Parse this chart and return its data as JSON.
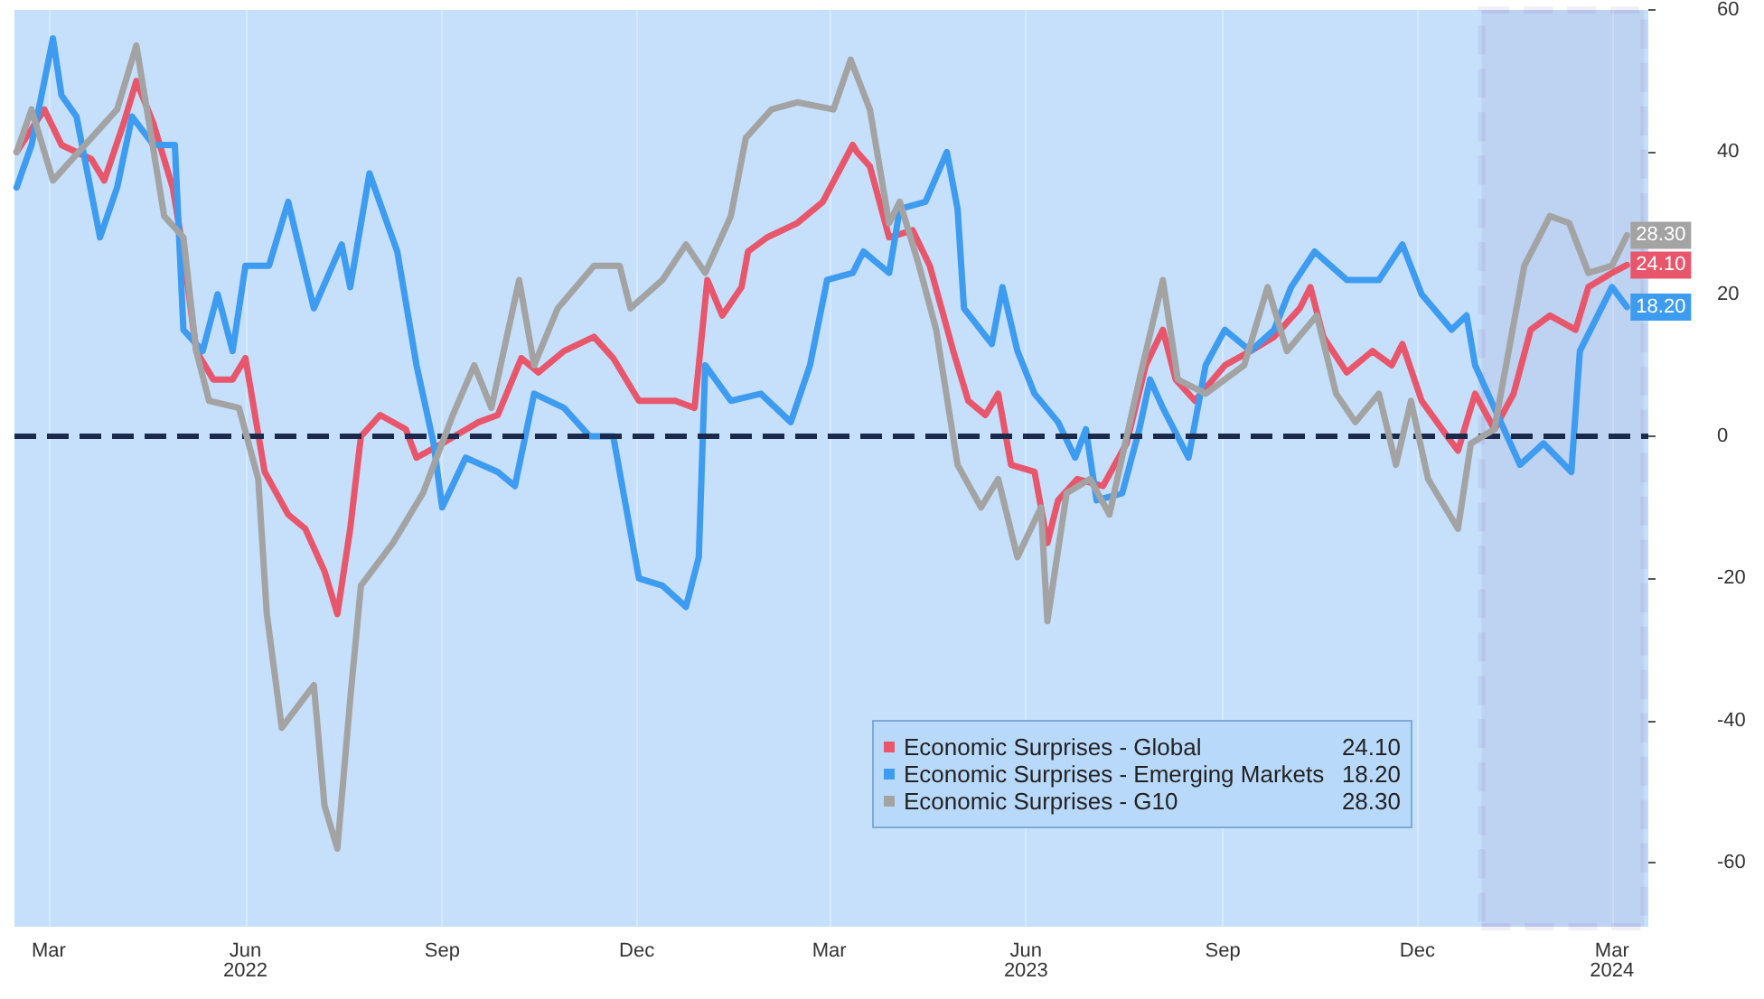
{
  "chart_data": {
    "type": "line",
    "series": [
      {
        "name": "Economic Surprises - Global",
        "color": "#e8566c",
        "x": [
          "2022-02-14",
          "2022-02-27",
          "2022-03-07",
          "2022-03-21",
          "2022-03-27",
          "2022-04-05",
          "2022-04-11",
          "2022-04-19",
          "2022-04-28",
          "2022-05-03",
          "2022-05-09",
          "2022-05-17",
          "2022-05-26",
          "2022-06-01",
          "2022-06-10",
          "2022-06-21",
          "2022-06-29",
          "2022-07-08",
          "2022-07-14",
          "2022-07-20",
          "2022-07-25",
          "2022-08-03",
          "2022-08-15",
          "2022-08-20",
          "2022-09-01",
          "2022-09-18",
          "2022-09-27",
          "2022-10-08",
          "2022-10-16",
          "2022-10-28",
          "2022-11-11",
          "2022-11-20",
          "2022-12-02",
          "2022-12-19",
          "2022-12-28",
          "2023-01-03",
          "2023-01-10",
          "2023-01-19",
          "2023-01-22",
          "2023-01-31",
          "2023-02-14",
          "2023-02-26",
          "2023-03-12",
          "2023-03-14",
          "2023-03-20",
          "2023-03-29",
          "2023-04-09",
          "2023-04-17",
          "2023-04-28",
          "2023-05-05",
          "2023-05-13",
          "2023-05-19",
          "2023-05-25",
          "2023-06-05",
          "2023-06-11",
          "2023-06-16",
          "2023-06-25",
          "2023-07-07",
          "2023-07-18",
          "2023-07-27",
          "2023-08-04",
          "2023-08-10",
          "2023-08-19",
          "2023-09-02",
          "2023-09-14",
          "2023-09-25",
          "2023-10-07",
          "2023-10-12",
          "2023-10-18",
          "2023-10-29",
          "2023-11-10",
          "2023-11-19",
          "2023-11-24",
          "2023-12-03",
          "2023-12-15",
          "2023-12-20",
          "2023-12-28",
          "2024-01-06",
          "2024-01-15",
          "2024-01-23",
          "2024-02-01",
          "2024-02-13",
          "2024-02-19",
          "2024-03-01",
          "2024-03-08"
        ],
        "values": [
          40,
          46,
          41,
          39,
          36,
          44,
          50,
          44,
          35,
          26,
          12,
          8,
          8,
          11,
          -5,
          -11,
          -13,
          -19,
          -25,
          -13,
          0,
          3,
          1,
          -3,
          -1,
          2,
          3,
          11,
          9,
          12,
          14,
          11,
          5,
          5,
          4,
          22,
          17,
          21,
          26,
          28,
          30,
          33,
          41,
          40,
          38,
          28,
          29,
          24,
          12,
          5,
          3,
          6,
          -4,
          -5,
          -15,
          -9,
          -6,
          -7,
          -1,
          10,
          15,
          8,
          5,
          10,
          12,
          14,
          18,
          21,
          14,
          9,
          12,
          10,
          13,
          5,
          0,
          -2,
          6,
          1,
          6,
          15,
          17,
          15,
          21,
          23,
          24.1
        ],
        "value_labels": [
          null,
          null,
          null,
          null,
          null,
          null,
          null,
          null,
          null,
          null,
          null,
          null,
          null,
          null,
          null,
          null,
          null,
          null,
          null,
          null,
          null,
          null,
          null,
          null,
          null,
          null,
          null,
          null,
          null,
          null,
          null,
          null,
          null,
          null,
          null,
          null,
          null,
          null,
          null,
          null,
          null,
          null,
          null,
          null,
          null,
          null,
          null,
          null,
          null,
          null,
          null,
          null,
          null,
          null,
          null,
          null,
          null,
          null,
          null,
          null,
          null,
          null,
          null,
          null,
          null,
          null,
          null,
          null,
          null,
          null,
          null,
          null,
          null,
          null,
          null,
          null,
          null,
          null,
          null,
          null,
          null,
          null,
          null,
          null,
          "24.10"
        ]
      },
      {
        "name": "Economic Surprises - Emerging Markets",
        "color": "#3d9bf0",
        "x": [
          "2022-02-14",
          "2022-02-21",
          "2022-03-03",
          "2022-03-07",
          "2022-03-14",
          "2022-03-25",
          "2022-04-02",
          "2022-04-09",
          "2022-04-19",
          "2022-04-29",
          "2022-05-03",
          "2022-05-12",
          "2022-05-19",
          "2022-05-26",
          "2022-06-01",
          "2022-06-12",
          "2022-06-21",
          "2022-07-03",
          "2022-07-16",
          "2022-07-20",
          "2022-07-29",
          "2022-08-11",
          "2022-08-20",
          "2022-08-28",
          "2022-09-01",
          "2022-09-12",
          "2022-09-27",
          "2022-10-05",
          "2022-10-14",
          "2022-10-28",
          "2022-11-09",
          "2022-11-20",
          "2022-12-02",
          "2022-12-13",
          "2022-12-24",
          "2022-12-30",
          "2023-01-02",
          "2023-01-14",
          "2023-01-28",
          "2023-02-11",
          "2023-02-20",
          "2023-02-28",
          "2023-03-12",
          "2023-03-17",
          "2023-03-29",
          "2023-04-03",
          "2023-04-15",
          "2023-04-25",
          "2023-04-30",
          "2023-05-03",
          "2023-05-16",
          "2023-05-21",
          "2023-05-28",
          "2023-06-05",
          "2023-06-16",
          "2023-06-24",
          "2023-06-29",
          "2023-07-04",
          "2023-07-16",
          "2023-07-24",
          "2023-07-29",
          "2023-08-04",
          "2023-08-16",
          "2023-08-24",
          "2023-09-02",
          "2023-09-14",
          "2023-09-25",
          "2023-10-03",
          "2023-10-14",
          "2023-10-29",
          "2023-11-13",
          "2023-11-24",
          "2023-12-03",
          "2023-12-17",
          "2023-12-24",
          "2023-12-28",
          "2024-01-06",
          "2024-01-18",
          "2024-01-29",
          "2024-02-11",
          "2024-02-15",
          "2024-03-01",
          "2024-03-08"
        ],
        "values": [
          35,
          41,
          56,
          48,
          45,
          28,
          35,
          45,
          41,
          41,
          15,
          12,
          20,
          12,
          24,
          24,
          33,
          18,
          27,
          21,
          37,
          26,
          10,
          -1,
          -10,
          -3,
          -5,
          -7,
          6,
          4,
          0,
          0,
          -20,
          -21,
          -24,
          -17,
          10,
          5,
          6,
          2,
          10,
          22,
          23,
          26,
          23,
          32,
          33,
          40,
          32,
          18,
          13,
          21,
          12,
          6,
          2,
          -3,
          1,
          -9,
          -8,
          1,
          8,
          4,
          -3,
          10,
          15,
          12,
          15,
          21,
          26,
          22,
          22,
          27,
          20,
          15,
          17,
          10,
          4,
          -4,
          -1,
          -5,
          12,
          21,
          18.2
        ],
        "value_labels": [
          null,
          null,
          null,
          null,
          null,
          null,
          null,
          null,
          null,
          null,
          null,
          null,
          null,
          null,
          null,
          null,
          null,
          null,
          null,
          null,
          null,
          null,
          null,
          null,
          null,
          null,
          null,
          null,
          null,
          null,
          null,
          null,
          null,
          null,
          null,
          null,
          null,
          null,
          null,
          null,
          null,
          null,
          null,
          null,
          null,
          null,
          null,
          null,
          null,
          null,
          null,
          null,
          null,
          null,
          null,
          null,
          null,
          null,
          null,
          null,
          null,
          null,
          null,
          null,
          null,
          null,
          null,
          null,
          null,
          null,
          null,
          null,
          null,
          null,
          null,
          null,
          null,
          null,
          null,
          null,
          null,
          null,
          "18.20"
        ]
      },
      {
        "name": "Economic Surprises - G10",
        "color": "#a3a3a3",
        "x": [
          "2022-02-14",
          "2022-02-21",
          "2022-03-03",
          "2022-04-02",
          "2022-04-11",
          "2022-04-17",
          "2022-04-24",
          "2022-05-03",
          "2022-05-09",
          "2022-05-15",
          "2022-05-29",
          "2022-06-07",
          "2022-06-11",
          "2022-06-18",
          "2022-07-03",
          "2022-07-08",
          "2022-07-14",
          "2022-07-20",
          "2022-07-25",
          "2022-08-09",
          "2022-08-23",
          "2022-09-06",
          "2022-09-16",
          "2022-09-24",
          "2022-10-07",
          "2022-10-14",
          "2022-10-25",
          "2022-11-11",
          "2022-11-23",
          "2022-11-28",
          "2022-12-13",
          "2022-12-24",
          "2023-01-02",
          "2023-01-14",
          "2023-01-21",
          "2023-02-02",
          "2023-02-14",
          "2023-03-03",
          "2023-03-11",
          "2023-03-20",
          "2023-03-29",
          "2023-04-03",
          "2023-04-12",
          "2023-04-20",
          "2023-04-30",
          "2023-05-11",
          "2023-05-19",
          "2023-05-28",
          "2023-06-08",
          "2023-06-11",
          "2023-06-20",
          "2023-07-01",
          "2023-07-10",
          "2023-07-24",
          "2023-08-04",
          "2023-08-11",
          "2023-08-24",
          "2023-09-11",
          "2023-09-22",
          "2023-10-01",
          "2023-10-15",
          "2023-10-24",
          "2023-11-02",
          "2023-11-13",
          "2023-11-21",
          "2023-11-28",
          "2023-12-06",
          "2023-12-20",
          "2023-12-26",
          "2024-01-06",
          "2024-01-20",
          "2024-02-01",
          "2024-02-10",
          "2024-02-19",
          "2024-03-01",
          "2024-03-08"
        ],
        "values": [
          40,
          46,
          36,
          46,
          55,
          44,
          31,
          28,
          12,
          5,
          4,
          -6,
          -25,
          -41,
          -35,
          -52,
          -58,
          -37,
          -21,
          -15,
          -8,
          3,
          10,
          4,
          22,
          10,
          18,
          24,
          24,
          18,
          22,
          27,
          23,
          31,
          42,
          46,
          47,
          46,
          53,
          46,
          30,
          33,
          24,
          15,
          -4,
          -10,
          -6,
          -17,
          -10,
          -26,
          -8,
          -6,
          -11,
          8,
          22,
          8,
          6,
          10,
          21,
          12,
          17,
          6,
          2,
          6,
          -4,
          5,
          -6,
          -13,
          -1,
          1,
          24,
          31,
          30,
          23,
          24,
          28.3
        ],
        "value_labels": [
          null,
          null,
          null,
          null,
          null,
          null,
          null,
          null,
          null,
          null,
          null,
          null,
          null,
          null,
          null,
          null,
          null,
          null,
          null,
          null,
          null,
          null,
          null,
          null,
          null,
          null,
          null,
          null,
          null,
          null,
          null,
          null,
          null,
          null,
          null,
          null,
          null,
          null,
          null,
          null,
          null,
          null,
          null,
          null,
          null,
          null,
          null,
          null,
          null,
          null,
          null,
          null,
          null,
          null,
          null,
          null,
          null,
          null,
          null,
          null,
          null,
          null,
          null,
          null,
          null,
          null,
          null,
          null,
          null,
          null,
          null,
          null,
          null,
          null,
          null,
          "28.30"
        ]
      }
    ],
    "ylim": [
      -69,
      60
    ],
    "yticks": [
      60,
      40,
      20,
      0,
      -20,
      -40,
      -60
    ],
    "xlim": [
      "2022-02-13",
      "2024-03-18"
    ],
    "xticks": [
      {
        "value": "2022-03-01",
        "label": "Mar"
      },
      {
        "value": "2022-06-01",
        "label": "Jun\n2022"
      },
      {
        "value": "2022-09-01",
        "label": "Sep"
      },
      {
        "value": "2022-12-01",
        "label": "Dec"
      },
      {
        "value": "2023-03-01",
        "label": "Mar"
      },
      {
        "value": "2023-06-01",
        "label": "Jun\n2023"
      },
      {
        "value": "2023-09-01",
        "label": "Sep"
      },
      {
        "value": "2023-12-01",
        "label": "Dec"
      },
      {
        "value": "2024-03-01",
        "label": "Mar\n2024"
      }
    ],
    "ref_lines": [
      {
        "axis": "y",
        "value": 0,
        "color": "#1b2a4a",
        "line_style": "dashed"
      }
    ],
    "bands": [
      {
        "axis": "x",
        "from": "2023-12-31",
        "to": "2024-03-16",
        "color": "#6b2d8f"
      }
    ],
    "legend": "bottom right",
    "grid": "x",
    "marker": "none",
    "line_style": "solid"
  }
}
